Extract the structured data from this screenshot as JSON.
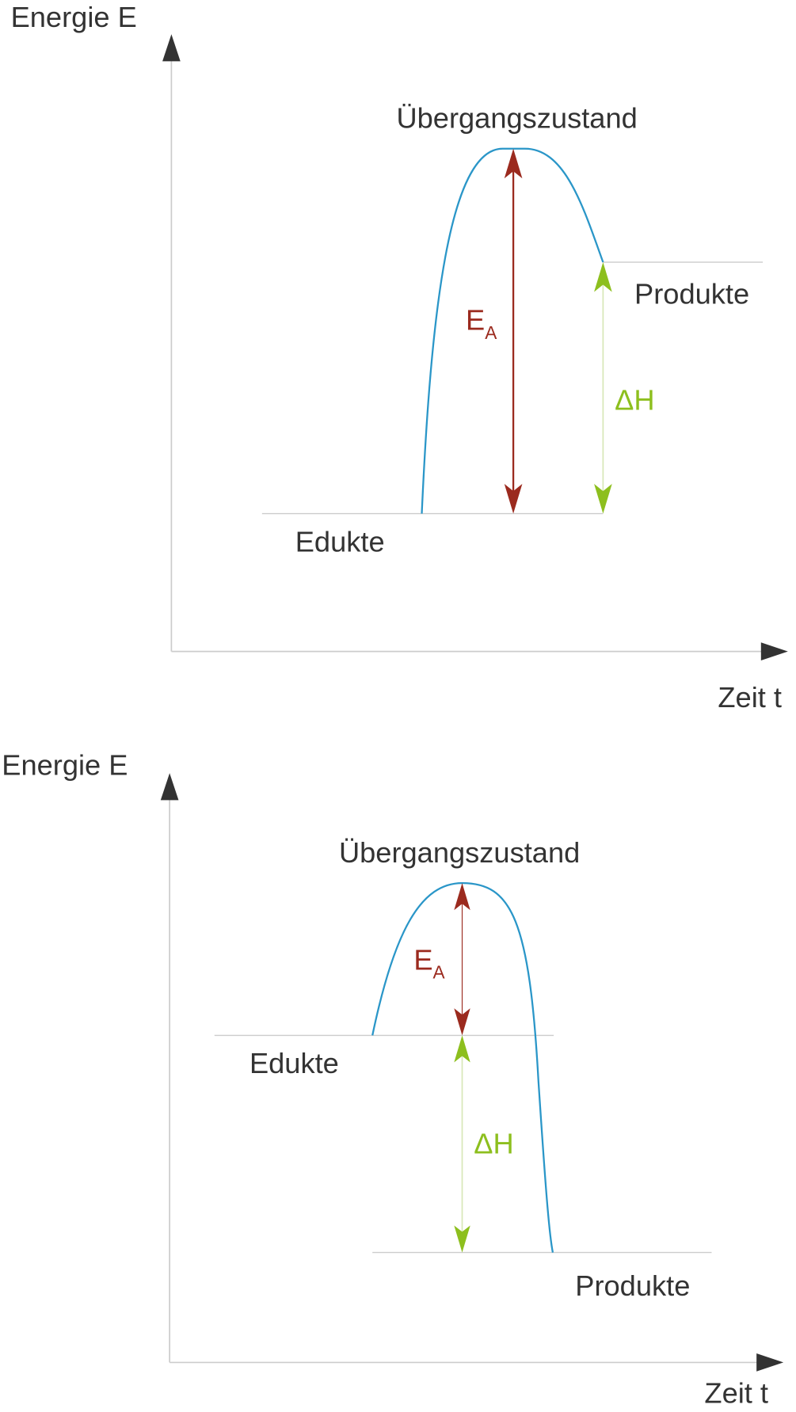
{
  "diagrams": [
    {
      "y_axis_label": "Energie E",
      "x_axis_label": "Zeit t",
      "transition_state": "Übergangszustand",
      "reactants": "Edukte",
      "products": "Produkte",
      "activation_energy": {
        "symbol": "E",
        "subscript": "A"
      },
      "enthalpy": "ΔH"
    },
    {
      "y_axis_label": "Energie E",
      "x_axis_label": "Zeit t",
      "transition_state": "Übergangszustand",
      "reactants": "Edukte",
      "products": "Produkte",
      "activation_energy": {
        "symbol": "E",
        "subscript": "A"
      },
      "enthalpy": "ΔH"
    }
  ]
}
